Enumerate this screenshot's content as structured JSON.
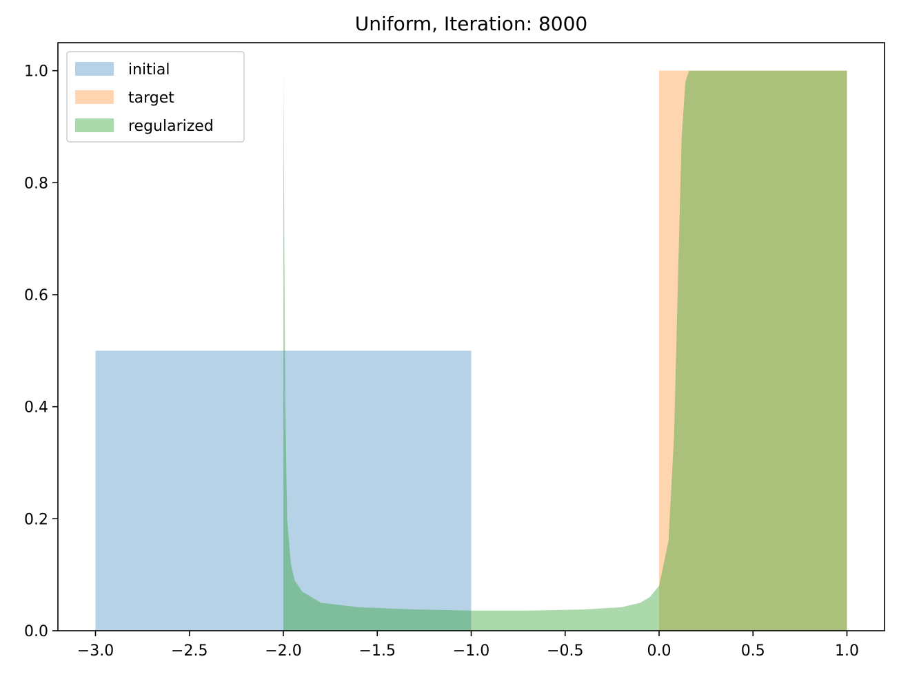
{
  "chart_data": {
    "type": "area",
    "title": "Uniform, Iteration: 8000",
    "xlabel": "",
    "ylabel": "",
    "xlim": [
      -3.2,
      1.2
    ],
    "ylim": [
      0.0,
      1.05
    ],
    "xticks": [
      -3.0,
      -2.5,
      -2.0,
      -1.5,
      -1.0,
      -0.5,
      0.0,
      0.5,
      1.0
    ],
    "xtick_labels": [
      "−3.0",
      "−2.5",
      "−2.0",
      "−1.5",
      "−1.0",
      "−0.5",
      "0.0",
      "0.5",
      "1.0"
    ],
    "yticks": [
      0.0,
      0.2,
      0.4,
      0.6,
      0.8,
      1.0
    ],
    "ytick_labels": [
      "0.0",
      "0.2",
      "0.4",
      "0.6",
      "0.8",
      "1.0"
    ],
    "grid": false,
    "legend_position": "top-left",
    "series": [
      {
        "name": "initial",
        "color": "#1f77b4",
        "alpha": 0.33,
        "x": [
          -3.0,
          -3.0,
          -1.0,
          -1.0
        ],
        "y": [
          0.0,
          0.5,
          0.5,
          0.0
        ]
      },
      {
        "name": "target",
        "color": "#ff7f0e",
        "alpha": 0.33,
        "x": [
          0.0,
          0.0,
          1.0,
          1.0
        ],
        "y": [
          0.0,
          1.0,
          1.0,
          0.0
        ]
      },
      {
        "name": "regularized",
        "color": "#2ca02c",
        "alpha": 0.4,
        "x": [
          -2.0,
          -2.0,
          -1.99,
          -1.98,
          -1.96,
          -1.94,
          -1.9,
          -1.8,
          -1.6,
          -1.3,
          -1.0,
          -0.7,
          -0.4,
          -0.2,
          -0.1,
          -0.05,
          0.0,
          0.05,
          0.08,
          0.1,
          0.12,
          0.14,
          0.16,
          0.2,
          0.5,
          1.0,
          1.0
        ],
        "y": [
          0.0,
          1.0,
          0.42,
          0.2,
          0.12,
          0.09,
          0.07,
          0.05,
          0.042,
          0.038,
          0.036,
          0.036,
          0.038,
          0.042,
          0.05,
          0.06,
          0.08,
          0.16,
          0.35,
          0.62,
          0.88,
          0.98,
          1.0,
          1.0,
          1.0,
          1.0,
          0.0
        ]
      }
    ]
  }
}
